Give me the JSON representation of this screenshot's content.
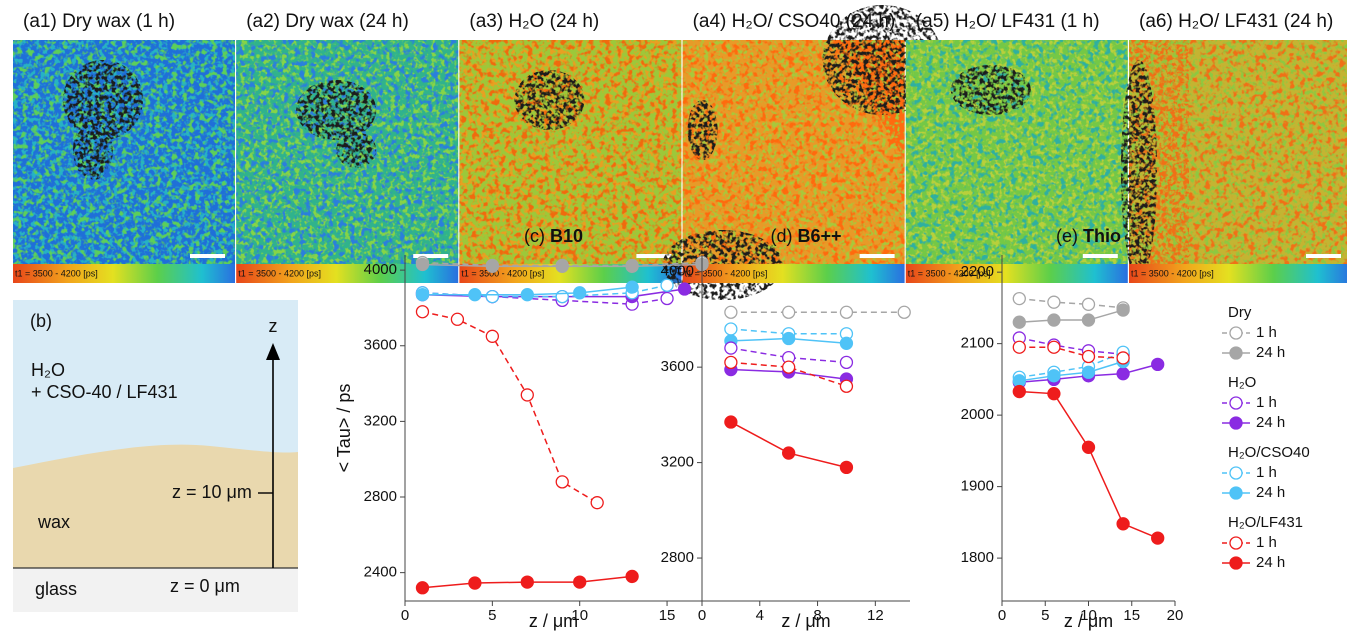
{
  "images": [
    {
      "label": "(a1) Dry wax (1 h)",
      "scale": "t1 = 3500 - 4200 [ps]"
    },
    {
      "label": "(a2) Dry wax (24 h)",
      "scale": "t1 = 3500 - 4200 [ps]"
    },
    {
      "label": "(a3) H₂O (24 h)",
      "scale": "t1 = 3500 - 4200 [ps]"
    },
    {
      "label": "(a4) H₂O/ CSO40 (24 h)",
      "scale": "t1 = 3500 - 4200 [ps]"
    },
    {
      "label": "(a5) H₂O/ LF431 (1 h)",
      "scale": "t1 = 3500 - 4200 [ps]"
    },
    {
      "label": "(a6) H₂O/ LF431 (24 h)",
      "scale": "t1 = 3500 - 4200 [ps]"
    }
  ],
  "diagram": {
    "label": "(b)",
    "medium": "H₂O",
    "additive": "+ CSO-40 / LF431",
    "axis": "z",
    "z_top": "z = 10 μm",
    "wax": "wax",
    "glass": "glass",
    "z_bottom": "z = 0 μm"
  },
  "chart_data": [
    {
      "type": "line",
      "label": "(c)",
      "title": "B10",
      "xlabel": "z / μm",
      "ylabel": "< Tau> / ps",
      "xlim": [
        0,
        17
      ],
      "xticks": [
        0,
        5,
        10,
        15
      ],
      "ylim": [
        2250,
        4080
      ],
      "yticks": [
        2400,
        2800,
        3200,
        3600,
        4000
      ],
      "series": [
        {
          "color": "#a6a6a6",
          "marker": "open",
          "linestyle": "dashed",
          "x": [
            1,
            5,
            9,
            13,
            17
          ],
          "values": [
            4040,
            4025,
            4025,
            4025,
            4040
          ]
        },
        {
          "color": "#a6a6a6",
          "marker": "filled",
          "linestyle": "solid",
          "x": [
            1,
            5,
            9,
            13,
            17
          ],
          "values": [
            4030,
            4020,
            4020,
            4020,
            4030
          ]
        },
        {
          "color": "#8a2be2",
          "marker": "open",
          "linestyle": "dashed",
          "x": [
            1,
            5,
            9,
            13,
            15
          ],
          "values": [
            3880,
            3860,
            3840,
            3820,
            3850
          ]
        },
        {
          "color": "#8a2be2",
          "marker": "filled",
          "linestyle": "solid",
          "x": [
            1,
            5,
            9,
            13,
            16
          ],
          "values": [
            3870,
            3860,
            3860,
            3860,
            3900
          ]
        },
        {
          "color": "#4fc3f7",
          "marker": "open",
          "linestyle": "dashed",
          "x": [
            1,
            5,
            9,
            13,
            15
          ],
          "values": [
            3880,
            3860,
            3860,
            3880,
            3920
          ]
        },
        {
          "color": "#4fc3f7",
          "marker": "filled",
          "linestyle": "solid",
          "x": [
            1,
            4,
            7,
            10,
            13
          ],
          "values": [
            3870,
            3870,
            3870,
            3880,
            3910
          ]
        },
        {
          "color": "#ee1c1c",
          "marker": "open",
          "linestyle": "dashed",
          "x": [
            1,
            3,
            5,
            7,
            9,
            11
          ],
          "values": [
            3780,
            3740,
            3650,
            3340,
            2880,
            2770
          ]
        },
        {
          "color": "#ee1c1c",
          "marker": "filled",
          "linestyle": "solid",
          "x": [
            1,
            4,
            7,
            10,
            13
          ],
          "values": [
            2320,
            2345,
            2350,
            2350,
            2380
          ]
        }
      ]
    },
    {
      "type": "line",
      "label": "(d)",
      "title": "B6++",
      "xlabel": "z / μm",
      "xlim": [
        0,
        14.4
      ],
      "xticks": [
        0,
        4,
        8,
        12
      ],
      "ylim": [
        2620,
        4070
      ],
      "yticks": [
        2800,
        3200,
        3600,
        4000
      ],
      "series": [
        {
          "color": "#a6a6a6",
          "marker": "open",
          "linestyle": "dashed",
          "x": [
            2,
            6,
            10,
            14
          ],
          "values": [
            3830,
            3830,
            3830,
            3830
          ]
        },
        {
          "color": "#4fc3f7",
          "marker": "open",
          "linestyle": "dashed",
          "x": [
            2,
            6,
            10
          ],
          "values": [
            3760,
            3740,
            3740
          ]
        },
        {
          "color": "#4fc3f7",
          "marker": "filled",
          "linestyle": "solid",
          "x": [
            2,
            6,
            10
          ],
          "values": [
            3710,
            3720,
            3700
          ]
        },
        {
          "color": "#8a2be2",
          "marker": "open",
          "linestyle": "dashed",
          "x": [
            2,
            6,
            10
          ],
          "values": [
            3680,
            3640,
            3620
          ]
        },
        {
          "color": "#8a2be2",
          "marker": "filled",
          "linestyle": "solid",
          "x": [
            2,
            6,
            10
          ],
          "values": [
            3590,
            3580,
            3550
          ]
        },
        {
          "color": "#ee1c1c",
          "marker": "open",
          "linestyle": "dashed",
          "x": [
            2,
            6,
            10
          ],
          "values": [
            3620,
            3600,
            3520
          ]
        },
        {
          "color": "#ee1c1c",
          "marker": "filled",
          "linestyle": "solid",
          "x": [
            2,
            6,
            10
          ],
          "values": [
            3370,
            3240,
            3180
          ]
        }
      ]
    },
    {
      "type": "line",
      "label": "(e)",
      "title": "Thio",
      "xlabel": "z / μm",
      "xlim": [
        0,
        20
      ],
      "xticks": [
        0,
        5,
        10,
        15,
        20
      ],
      "ylim": [
        1740,
        2224
      ],
      "yticks": [
        1800,
        1900,
        2000,
        2100,
        2200
      ],
      "series": [
        {
          "color": "#a6a6a6",
          "marker": "open",
          "linestyle": "dashed",
          "x": [
            2,
            6,
            10,
            14
          ],
          "values": [
            2163,
            2158,
            2155,
            2150
          ]
        },
        {
          "color": "#a6a6a6",
          "marker": "filled",
          "linestyle": "solid",
          "x": [
            2,
            6,
            10,
            14
          ],
          "values": [
            2130,
            2133,
            2133,
            2147
          ]
        },
        {
          "color": "#8a2be2",
          "marker": "open",
          "linestyle": "dashed",
          "x": [
            2,
            6,
            10,
            14
          ],
          "values": [
            2108,
            2098,
            2090,
            2085
          ]
        },
        {
          "color": "#8a2be2",
          "marker": "filled",
          "linestyle": "solid",
          "x": [
            2,
            6,
            10,
            14,
            18
          ],
          "values": [
            2046,
            2050,
            2055,
            2058,
            2071
          ]
        },
        {
          "color": "#4fc3f7",
          "marker": "open",
          "linestyle": "dashed",
          "x": [
            2,
            6,
            10,
            14
          ],
          "values": [
            2053,
            2060,
            2068,
            2088
          ]
        },
        {
          "color": "#4fc3f7",
          "marker": "filled",
          "linestyle": "solid",
          "x": [
            2,
            6,
            10,
            14
          ],
          "values": [
            2048,
            2055,
            2060,
            2075
          ]
        },
        {
          "color": "#ee1c1c",
          "marker": "open",
          "linestyle": "dashed",
          "x": [
            2,
            6,
            10,
            14
          ],
          "values": [
            2095,
            2095,
            2082,
            2080
          ]
        },
        {
          "color": "#ee1c1c",
          "marker": "filled",
          "linestyle": "solid",
          "x": [
            2,
            6,
            10,
            14,
            18
          ],
          "values": [
            2033,
            2030,
            1955,
            1848,
            1828
          ]
        }
      ]
    }
  ],
  "legend": {
    "groups": [
      {
        "title": "Dry",
        "entries": [
          {
            "name": "1 h",
            "color": "#a6a6a6",
            "marker": "open",
            "linestyle": "dashed"
          },
          {
            "name": "24 h",
            "color": "#a6a6a6",
            "marker": "filled",
            "linestyle": "solid"
          }
        ]
      },
      {
        "title": "H₂O",
        "entries": [
          {
            "name": "1 h",
            "color": "#8a2be2",
            "marker": "open",
            "linestyle": "dashed"
          },
          {
            "name": "24 h",
            "color": "#8a2be2",
            "marker": "filled",
            "linestyle": "solid"
          }
        ]
      },
      {
        "title": "H₂O/CSO40",
        "entries": [
          {
            "name": "1 h",
            "color": "#4fc3f7",
            "marker": "open",
            "linestyle": "dashed"
          },
          {
            "name": "24 h",
            "color": "#4fc3f7",
            "marker": "filled",
            "linestyle": "solid"
          }
        ]
      },
      {
        "title": "H₂O/LF431",
        "entries": [
          {
            "name": "1 h",
            "color": "#ee1c1c",
            "marker": "open",
            "linestyle": "dashed"
          },
          {
            "name": "24 h",
            "color": "#ee1c1c",
            "marker": "filled",
            "linestyle": "solid"
          }
        ]
      }
    ]
  }
}
